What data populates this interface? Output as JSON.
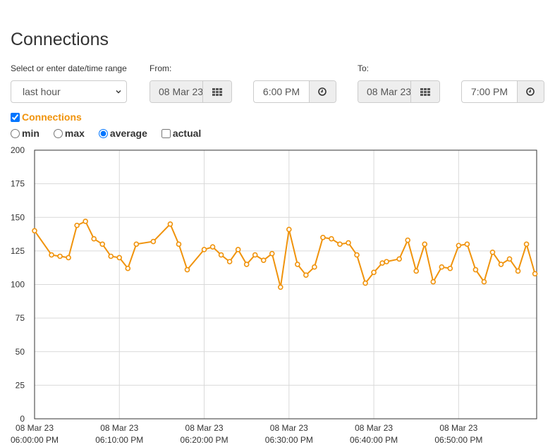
{
  "page": {
    "title": "Connections"
  },
  "range": {
    "label": "Select or enter date/time range",
    "selected": "last hour"
  },
  "from": {
    "label": "From:",
    "date": "08 Mar 23",
    "time": "6:00 PM"
  },
  "to": {
    "label": "To:",
    "date": "08 Mar 23",
    "time": "7:00 PM"
  },
  "icons": {
    "calendar": "calendar-grid-icon",
    "clock": "clock-icon"
  },
  "series_toggle": {
    "label": "Connections",
    "checked": true,
    "color": "#f0930c"
  },
  "modes": {
    "min": "min",
    "max": "max",
    "average": "average",
    "actual": "actual",
    "selected": "average"
  },
  "chart_data": {
    "type": "line",
    "ylim": [
      0,
      200
    ],
    "yticks": [
      "0",
      "25",
      "50",
      "75",
      "100",
      "125",
      "150",
      "175",
      "200"
    ],
    "xticks": [
      {
        "date": "08 Mar 23",
        "time": "06:00:00 PM"
      },
      {
        "date": "08 Mar 23",
        "time": "06:10:00 PM"
      },
      {
        "date": "08 Mar 23",
        "time": "06:20:00 PM"
      },
      {
        "date": "08 Mar 23",
        "time": "06:30:00 PM"
      },
      {
        "date": "08 Mar 23",
        "time": "06:40:00 PM"
      },
      {
        "date": "08 Mar 23",
        "time": "06:50:00 PM"
      }
    ],
    "xunit": "minutes after 06:00:00 PM",
    "xlim": [
      0,
      59.2
    ],
    "grid": true,
    "series": [
      {
        "color": "#f0930c",
        "x": [
          0,
          2,
          3,
          4,
          5,
          6,
          7,
          8,
          9,
          10,
          11,
          12,
          14,
          16,
          17,
          18,
          20,
          21,
          22,
          23,
          24,
          25,
          26,
          27,
          28,
          29,
          30,
          31,
          32,
          33,
          34,
          35,
          36,
          37,
          38,
          39,
          40,
          41,
          41.5,
          43,
          44,
          45,
          46,
          47,
          48,
          49,
          50,
          51,
          52,
          53,
          54,
          55,
          56,
          57,
          58,
          59
        ],
        "y": [
          140,
          122,
          121,
          120,
          144,
          147,
          134,
          130,
          121,
          120,
          112,
          130,
          132,
          145,
          130,
          111,
          126,
          128,
          122,
          117,
          126,
          115,
          122,
          118,
          123,
          98,
          141,
          115,
          107,
          113,
          135,
          134,
          130,
          131,
          122,
          101,
          109,
          116,
          117,
          119,
          133,
          110,
          130,
          102,
          113,
          112,
          129,
          130,
          111,
          102,
          124,
          115,
          119,
          110,
          130,
          108
        ]
      }
    ]
  }
}
